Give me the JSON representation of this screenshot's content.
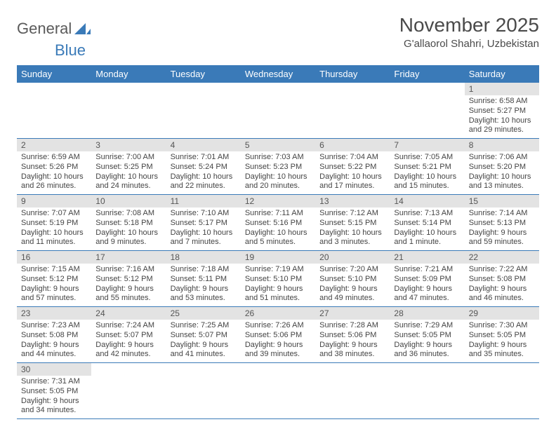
{
  "brand": {
    "word1": "General",
    "word2": "Blue"
  },
  "title": "November 2025",
  "location": "G'allaorol Shahri, Uzbekistan",
  "colors": {
    "header_bg": "#3a7ab8",
    "header_text": "#ffffff",
    "daynum_bg": "#e3e3e3",
    "border": "#3a7ab8",
    "text": "#444444"
  },
  "dayNames": [
    "Sunday",
    "Monday",
    "Tuesday",
    "Wednesday",
    "Thursday",
    "Friday",
    "Saturday"
  ],
  "weeks": [
    [
      null,
      null,
      null,
      null,
      null,
      null,
      {
        "n": "1",
        "sunrise": "Sunrise: 6:58 AM",
        "sunset": "Sunset: 5:27 PM",
        "daylight": "Daylight: 10 hours and 29 minutes."
      }
    ],
    [
      {
        "n": "2",
        "sunrise": "Sunrise: 6:59 AM",
        "sunset": "Sunset: 5:26 PM",
        "daylight": "Daylight: 10 hours and 26 minutes."
      },
      {
        "n": "3",
        "sunrise": "Sunrise: 7:00 AM",
        "sunset": "Sunset: 5:25 PM",
        "daylight": "Daylight: 10 hours and 24 minutes."
      },
      {
        "n": "4",
        "sunrise": "Sunrise: 7:01 AM",
        "sunset": "Sunset: 5:24 PM",
        "daylight": "Daylight: 10 hours and 22 minutes."
      },
      {
        "n": "5",
        "sunrise": "Sunrise: 7:03 AM",
        "sunset": "Sunset: 5:23 PM",
        "daylight": "Daylight: 10 hours and 20 minutes."
      },
      {
        "n": "6",
        "sunrise": "Sunrise: 7:04 AM",
        "sunset": "Sunset: 5:22 PM",
        "daylight": "Daylight: 10 hours and 17 minutes."
      },
      {
        "n": "7",
        "sunrise": "Sunrise: 7:05 AM",
        "sunset": "Sunset: 5:21 PM",
        "daylight": "Daylight: 10 hours and 15 minutes."
      },
      {
        "n": "8",
        "sunrise": "Sunrise: 7:06 AM",
        "sunset": "Sunset: 5:20 PM",
        "daylight": "Daylight: 10 hours and 13 minutes."
      }
    ],
    [
      {
        "n": "9",
        "sunrise": "Sunrise: 7:07 AM",
        "sunset": "Sunset: 5:19 PM",
        "daylight": "Daylight: 10 hours and 11 minutes."
      },
      {
        "n": "10",
        "sunrise": "Sunrise: 7:08 AM",
        "sunset": "Sunset: 5:18 PM",
        "daylight": "Daylight: 10 hours and 9 minutes."
      },
      {
        "n": "11",
        "sunrise": "Sunrise: 7:10 AM",
        "sunset": "Sunset: 5:17 PM",
        "daylight": "Daylight: 10 hours and 7 minutes."
      },
      {
        "n": "12",
        "sunrise": "Sunrise: 7:11 AM",
        "sunset": "Sunset: 5:16 PM",
        "daylight": "Daylight: 10 hours and 5 minutes."
      },
      {
        "n": "13",
        "sunrise": "Sunrise: 7:12 AM",
        "sunset": "Sunset: 5:15 PM",
        "daylight": "Daylight: 10 hours and 3 minutes."
      },
      {
        "n": "14",
        "sunrise": "Sunrise: 7:13 AM",
        "sunset": "Sunset: 5:14 PM",
        "daylight": "Daylight: 10 hours and 1 minute."
      },
      {
        "n": "15",
        "sunrise": "Sunrise: 7:14 AM",
        "sunset": "Sunset: 5:13 PM",
        "daylight": "Daylight: 9 hours and 59 minutes."
      }
    ],
    [
      {
        "n": "16",
        "sunrise": "Sunrise: 7:15 AM",
        "sunset": "Sunset: 5:12 PM",
        "daylight": "Daylight: 9 hours and 57 minutes."
      },
      {
        "n": "17",
        "sunrise": "Sunrise: 7:16 AM",
        "sunset": "Sunset: 5:12 PM",
        "daylight": "Daylight: 9 hours and 55 minutes."
      },
      {
        "n": "18",
        "sunrise": "Sunrise: 7:18 AM",
        "sunset": "Sunset: 5:11 PM",
        "daylight": "Daylight: 9 hours and 53 minutes."
      },
      {
        "n": "19",
        "sunrise": "Sunrise: 7:19 AM",
        "sunset": "Sunset: 5:10 PM",
        "daylight": "Daylight: 9 hours and 51 minutes."
      },
      {
        "n": "20",
        "sunrise": "Sunrise: 7:20 AM",
        "sunset": "Sunset: 5:10 PM",
        "daylight": "Daylight: 9 hours and 49 minutes."
      },
      {
        "n": "21",
        "sunrise": "Sunrise: 7:21 AM",
        "sunset": "Sunset: 5:09 PM",
        "daylight": "Daylight: 9 hours and 47 minutes."
      },
      {
        "n": "22",
        "sunrise": "Sunrise: 7:22 AM",
        "sunset": "Sunset: 5:08 PM",
        "daylight": "Daylight: 9 hours and 46 minutes."
      }
    ],
    [
      {
        "n": "23",
        "sunrise": "Sunrise: 7:23 AM",
        "sunset": "Sunset: 5:08 PM",
        "daylight": "Daylight: 9 hours and 44 minutes."
      },
      {
        "n": "24",
        "sunrise": "Sunrise: 7:24 AM",
        "sunset": "Sunset: 5:07 PM",
        "daylight": "Daylight: 9 hours and 42 minutes."
      },
      {
        "n": "25",
        "sunrise": "Sunrise: 7:25 AM",
        "sunset": "Sunset: 5:07 PM",
        "daylight": "Daylight: 9 hours and 41 minutes."
      },
      {
        "n": "26",
        "sunrise": "Sunrise: 7:26 AM",
        "sunset": "Sunset: 5:06 PM",
        "daylight": "Daylight: 9 hours and 39 minutes."
      },
      {
        "n": "27",
        "sunrise": "Sunrise: 7:28 AM",
        "sunset": "Sunset: 5:06 PM",
        "daylight": "Daylight: 9 hours and 38 minutes."
      },
      {
        "n": "28",
        "sunrise": "Sunrise: 7:29 AM",
        "sunset": "Sunset: 5:05 PM",
        "daylight": "Daylight: 9 hours and 36 minutes."
      },
      {
        "n": "29",
        "sunrise": "Sunrise: 7:30 AM",
        "sunset": "Sunset: 5:05 PM",
        "daylight": "Daylight: 9 hours and 35 minutes."
      }
    ],
    [
      {
        "n": "30",
        "sunrise": "Sunrise: 7:31 AM",
        "sunset": "Sunset: 5:05 PM",
        "daylight": "Daylight: 9 hours and 34 minutes."
      },
      null,
      null,
      null,
      null,
      null,
      null
    ]
  ]
}
